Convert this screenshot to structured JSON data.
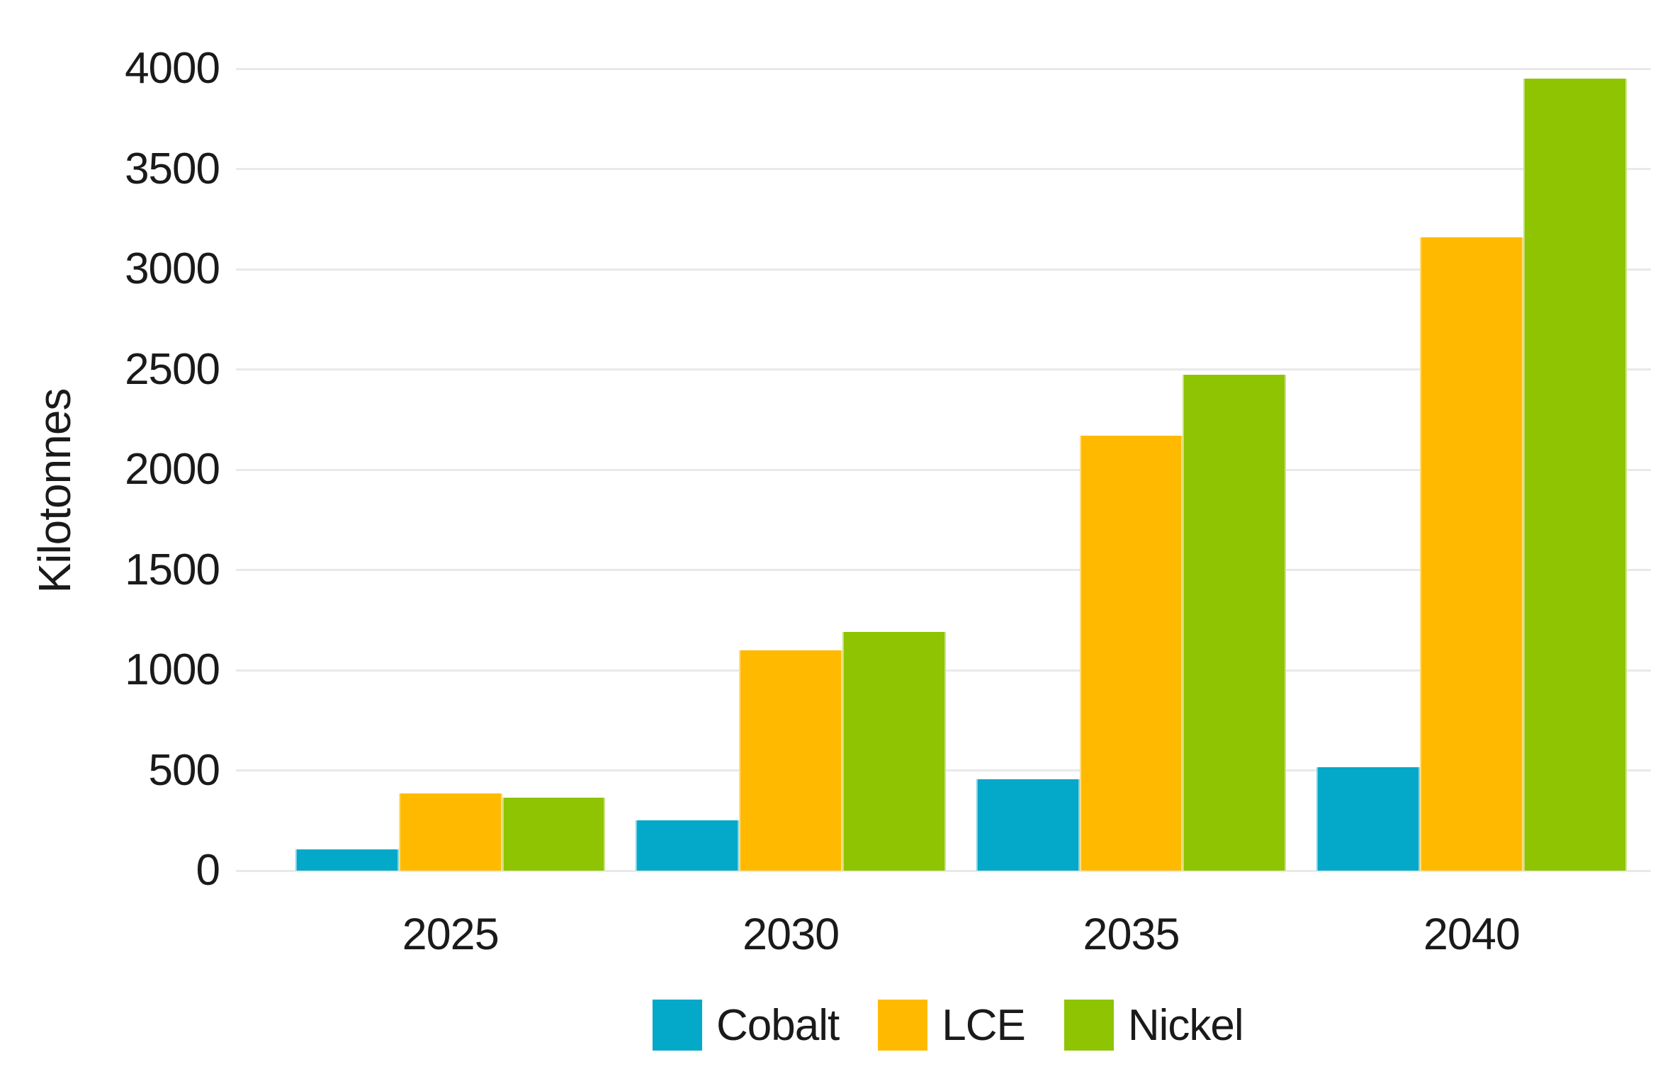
{
  "chart_data": {
    "type": "bar",
    "title": "",
    "categories": [
      "2025",
      "2030",
      "2035",
      "2040"
    ],
    "series": [
      {
        "name": "Cobalt",
        "color": "#04A8C9",
        "values": [
          105,
          250,
          455,
          515
        ]
      },
      {
        "name": "LCE",
        "color": "#FFBA00",
        "values": [
          385,
          1100,
          2170,
          3160
        ]
      },
      {
        "name": "Nickel",
        "color": "#8EC402",
        "values": [
          365,
          1190,
          2475,
          3950
        ]
      }
    ],
    "xlabel": "",
    "ylabel": "Kilotonnes",
    "ylim": [
      0,
      4000
    ],
    "yticks": [
      0,
      500,
      1000,
      1500,
      2000,
      2500,
      3000,
      3500,
      4000
    ],
    "grid": true,
    "legend_position": "bottom"
  },
  "colors": {
    "background": "#ffffff",
    "gridline": "#e9e9e9",
    "text": "#1a1a1a",
    "cobalt": "#04A8C9",
    "lce": "#FFBA00",
    "nickel": "#8EC402"
  }
}
